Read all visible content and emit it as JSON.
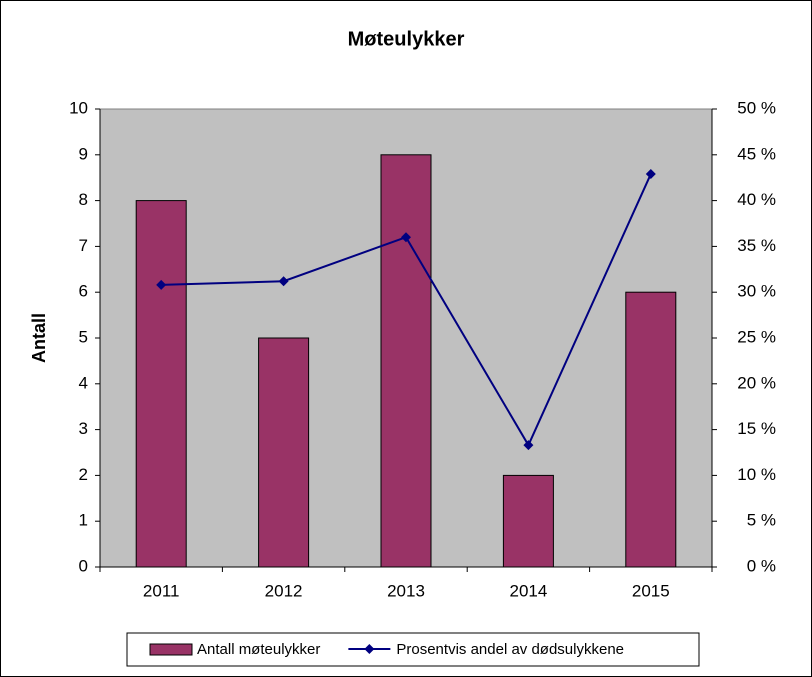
{
  "chart_data": {
    "type": "bar",
    "title": "Møteulykker",
    "y_label": "Antall",
    "categories": [
      "2011",
      "2012",
      "2013",
      "2014",
      "2015"
    ],
    "series": [
      {
        "name": "Antall møteulykker",
        "type": "bar",
        "color": "#993366",
        "values": [
          8,
          5,
          9,
          2,
          6
        ]
      },
      {
        "name": "Prosentvis andel av dødsulykkene",
        "type": "line",
        "axis": "y2",
        "color": "#000080",
        "values": [
          30.8,
          31.2,
          36,
          13.3,
          42.9
        ]
      }
    ],
    "ylim": [
      0,
      10
    ],
    "yticks": [
      0,
      1,
      2,
      3,
      4,
      5,
      6,
      7,
      8,
      9,
      10
    ],
    "y2lim": [
      0,
      50
    ],
    "y2ticks": [
      {
        "value": 0,
        "label": "0 %"
      },
      {
        "value": 5,
        "label": "5 %"
      },
      {
        "value": 10,
        "label": "10 %"
      },
      {
        "value": 15,
        "label": "15 %"
      },
      {
        "value": 20,
        "label": "20 %"
      },
      {
        "value": 25,
        "label": "25 %"
      },
      {
        "value": 30,
        "label": "30 %"
      },
      {
        "value": 35,
        "label": "35 %"
      },
      {
        "value": 40,
        "label": "40 %"
      },
      {
        "value": 45,
        "label": "45 %"
      },
      {
        "value": 50,
        "label": "50 %"
      }
    ],
    "plot_background": "#c0c0c0",
    "legend": "bottom"
  }
}
